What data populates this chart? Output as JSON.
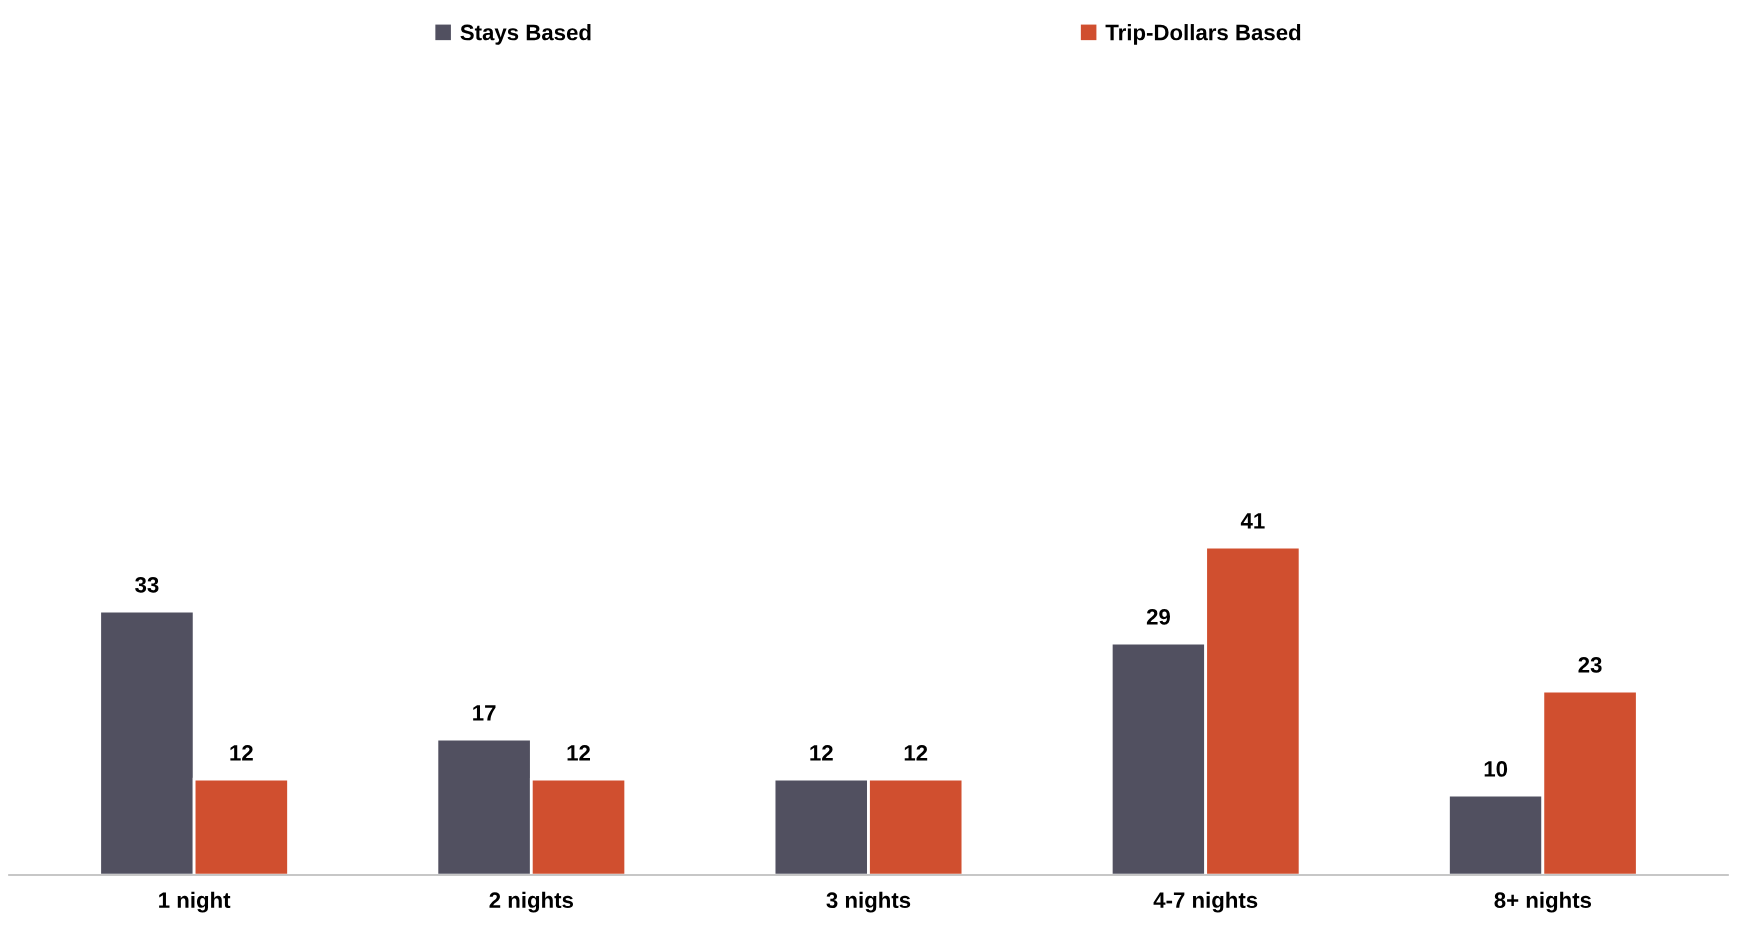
{
  "chart_data": {
    "type": "bar",
    "categories": [
      "1 night",
      "2 nights",
      "3 nights",
      "4-7 nights",
      "8+ nights"
    ],
    "series": [
      {
        "name": "Stays Based",
        "color": "#515060",
        "values": [
          33,
          17,
          12,
          29,
          10
        ]
      },
      {
        "name": "Trip-Dollars Based",
        "color": "#d04f2f",
        "values": [
          12,
          12,
          12,
          41,
          23
        ]
      }
    ],
    "data_labels": true,
    "legend": "top",
    "grid": false
  }
}
